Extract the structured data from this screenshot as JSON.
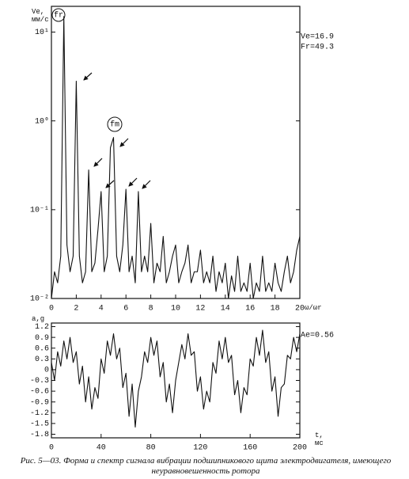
{
  "chart_data": [
    {
      "type": "line",
      "log_y": true,
      "color": "#111111",
      "ylabel": "Ve, мм/с",
      "xlabel": "ω/ωr",
      "annotations": [
        "Ve=16.9",
        "Fr=49.3",
        "fr",
        "fm"
      ],
      "x": [
        0,
        0.25,
        0.5,
        0.75,
        1,
        1.25,
        1.5,
        1.75,
        2,
        2.25,
        2.5,
        2.75,
        3,
        3.25,
        3.5,
        3.75,
        4,
        4.25,
        4.5,
        4.75,
        5,
        5.25,
        5.5,
        5.75,
        6,
        6.25,
        6.5,
        6.75,
        7,
        7.25,
        7.5,
        7.75,
        8,
        8.25,
        8.5,
        8.75,
        9,
        9.25,
        9.5,
        9.75,
        10,
        10.25,
        10.5,
        10.75,
        11,
        11.25,
        11.5,
        11.75,
        12,
        12.25,
        12.5,
        12.75,
        13,
        13.25,
        13.5,
        13.75,
        14,
        14.25,
        14.5,
        14.75,
        15,
        15.25,
        15.5,
        15.75,
        16,
        16.25,
        16.5,
        16.75,
        17,
        17.25,
        17.5,
        17.75,
        18,
        18.25,
        18.5,
        18.75,
        19,
        19.25,
        19.5,
        19.75,
        20
      ],
      "values": [
        0.01,
        0.02,
        0.015,
        0.03,
        15,
        0.04,
        0.02,
        0.03,
        2.8,
        0.03,
        0.015,
        0.02,
        0.28,
        0.02,
        0.025,
        0.06,
        0.16,
        0.02,
        0.03,
        0.5,
        0.65,
        0.03,
        0.02,
        0.04,
        0.17,
        0.02,
        0.03,
        0.015,
        0.16,
        0.02,
        0.03,
        0.02,
        0.07,
        0.015,
        0.025,
        0.02,
        0.05,
        0.015,
        0.02,
        0.03,
        0.04,
        0.015,
        0.02,
        0.025,
        0.04,
        0.015,
        0.02,
        0.02,
        0.035,
        0.015,
        0.02,
        0.015,
        0.03,
        0.012,
        0.02,
        0.015,
        0.025,
        0.01,
        0.018,
        0.012,
        0.03,
        0.012,
        0.015,
        0.012,
        0.025,
        0.01,
        0.015,
        0.012,
        0.03,
        0.012,
        0.015,
        0.012,
        0.025,
        0.015,
        0.012,
        0.02,
        0.03,
        0.015,
        0.02,
        0.035,
        0.05
      ],
      "xlim": [
        0,
        20
      ],
      "xticks": [
        0,
        2,
        4,
        6,
        8,
        10,
        12,
        14,
        16,
        18,
        20
      ],
      "ylim": [
        0.01,
        19.5
      ],
      "yticks": [
        {
          "value": 0.01,
          "label": "10⁻²"
        },
        {
          "value": 0.1,
          "label": "10⁻¹"
        },
        {
          "value": 1,
          "label": "10⁰"
        },
        {
          "value": 10,
          "label": "10¹"
        }
      ]
    },
    {
      "type": "line",
      "log_y": false,
      "color": "#111111",
      "ylabel": "a,g",
      "xlabel": "t, мс",
      "annotations": [
        "Ae=0.56"
      ],
      "x": [
        0,
        2.5,
        5,
        7.5,
        10,
        12.5,
        15,
        17.5,
        20,
        22.5,
        25,
        27.5,
        30,
        32.5,
        35,
        37.5,
        40,
        42.5,
        45,
        47.5,
        50,
        52.5,
        55,
        57.5,
        60,
        62.5,
        65,
        67.5,
        70,
        72.5,
        75,
        77.5,
        80,
        82.5,
        85,
        87.5,
        90,
        92.5,
        95,
        97.5,
        100,
        102.5,
        105,
        107.5,
        110,
        112.5,
        115,
        117.5,
        120,
        122.5,
        125,
        127.5,
        130,
        132.5,
        135,
        137.5,
        140,
        142.5,
        145,
        147.5,
        150,
        152.5,
        155,
        157.5,
        160,
        162.5,
        165,
        167.5,
        170,
        172.5,
        175,
        177.5,
        180,
        182.5,
        185,
        187.5,
        190,
        192.5,
        195,
        197.5,
        200
      ],
      "values": [
        0.2,
        -0.3,
        0.5,
        0.1,
        0.8,
        0.3,
        0.9,
        0.2,
        0.5,
        -0.4,
        0.1,
        -0.9,
        -0.2,
        -1.1,
        -0.5,
        -0.8,
        0.3,
        -0.1,
        0.8,
        0.4,
        1.0,
        0.3,
        0.6,
        -0.5,
        -0.1,
        -1.3,
        -0.4,
        -1.6,
        -0.6,
        -0.2,
        0.5,
        0.2,
        0.9,
        0.4,
        0.8,
        -0.2,
        0.2,
        -0.9,
        -0.4,
        -1.2,
        -0.3,
        0.2,
        0.7,
        0.3,
        1.0,
        0.4,
        0.5,
        -0.6,
        -0.2,
        -1.1,
        -0.6,
        -0.9,
        0.2,
        -0.1,
        0.8,
        0.3,
        0.9,
        0.2,
        0.4,
        -0.7,
        -0.3,
        -1.2,
        -0.5,
        -0.7,
        0.3,
        0.1,
        0.9,
        0.4,
        1.1,
        0.2,
        0.5,
        -0.6,
        -0.2,
        -1.3,
        -0.5,
        -0.4,
        0.4,
        0.3,
        0.9,
        0.5,
        1.0
      ],
      "xlim": [
        0,
        200
      ],
      "xticks": [
        0,
        40,
        80,
        120,
        160,
        200
      ],
      "ylim": [
        -1.9,
        1.3
      ],
      "yticks": [
        1.2,
        0.9,
        0.6,
        0.3,
        0,
        -0.3,
        -0.6,
        -0.9,
        -1.2,
        -1.5,
        -1.8
      ]
    }
  ],
  "caption": "Рис. 5—03. Форма и спектр сигнала вибрации подшипникового щита электродвигателя, имеющего неуравновешенность ротора"
}
